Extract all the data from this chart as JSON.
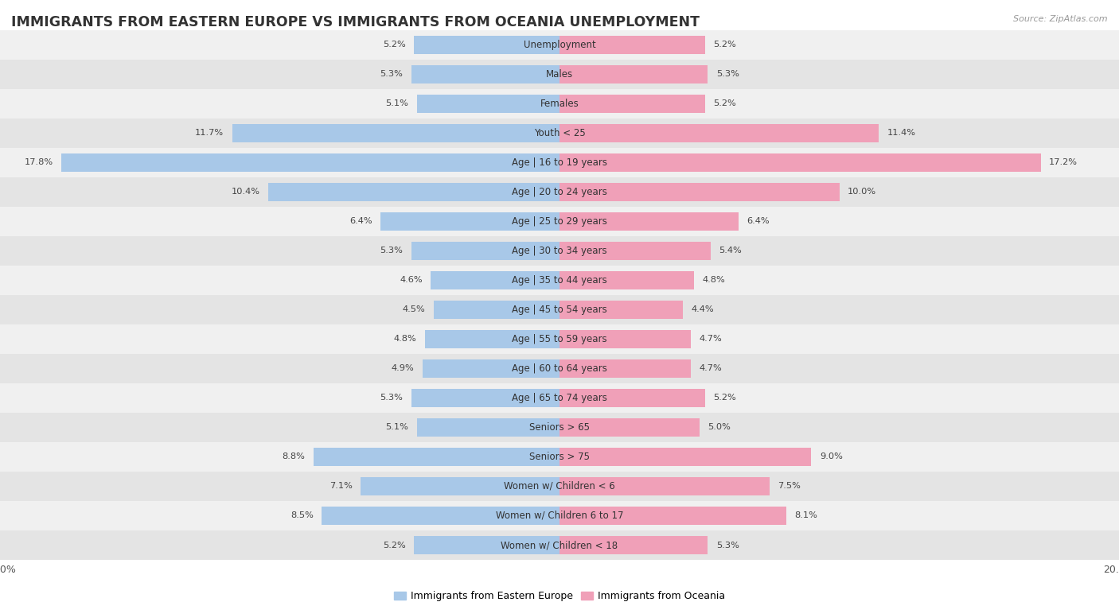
{
  "title": "IMMIGRANTS FROM EASTERN EUROPE VS IMMIGRANTS FROM OCEANIA UNEMPLOYMENT",
  "source": "Source: ZipAtlas.com",
  "categories": [
    "Unemployment",
    "Males",
    "Females",
    "Youth < 25",
    "Age | 16 to 19 years",
    "Age | 20 to 24 years",
    "Age | 25 to 29 years",
    "Age | 30 to 34 years",
    "Age | 35 to 44 years",
    "Age | 45 to 54 years",
    "Age | 55 to 59 years",
    "Age | 60 to 64 years",
    "Age | 65 to 74 years",
    "Seniors > 65",
    "Seniors > 75",
    "Women w/ Children < 6",
    "Women w/ Children 6 to 17",
    "Women w/ Children < 18"
  ],
  "eastern_europe": [
    5.2,
    5.3,
    5.1,
    11.7,
    17.8,
    10.4,
    6.4,
    5.3,
    4.6,
    4.5,
    4.8,
    4.9,
    5.3,
    5.1,
    8.8,
    7.1,
    8.5,
    5.2
  ],
  "oceania": [
    5.2,
    5.3,
    5.2,
    11.4,
    17.2,
    10.0,
    6.4,
    5.4,
    4.8,
    4.4,
    4.7,
    4.7,
    5.2,
    5.0,
    9.0,
    7.5,
    8.1,
    5.3
  ],
  "color_eastern": "#A8C8E8",
  "color_oceania": "#F0A0B8",
  "background_row_odd": "#F0F0F0",
  "background_row_even": "#E4E4E4",
  "xlim": 20.0,
  "bar_height": 0.62,
  "legend_label_eastern": "Immigrants from Eastern Europe",
  "legend_label_oceania": "Immigrants from Oceania",
  "title_fontsize": 12.5,
  "source_fontsize": 8,
  "label_fontsize": 8.5,
  "value_fontsize": 8.2,
  "tick_fontsize": 9
}
